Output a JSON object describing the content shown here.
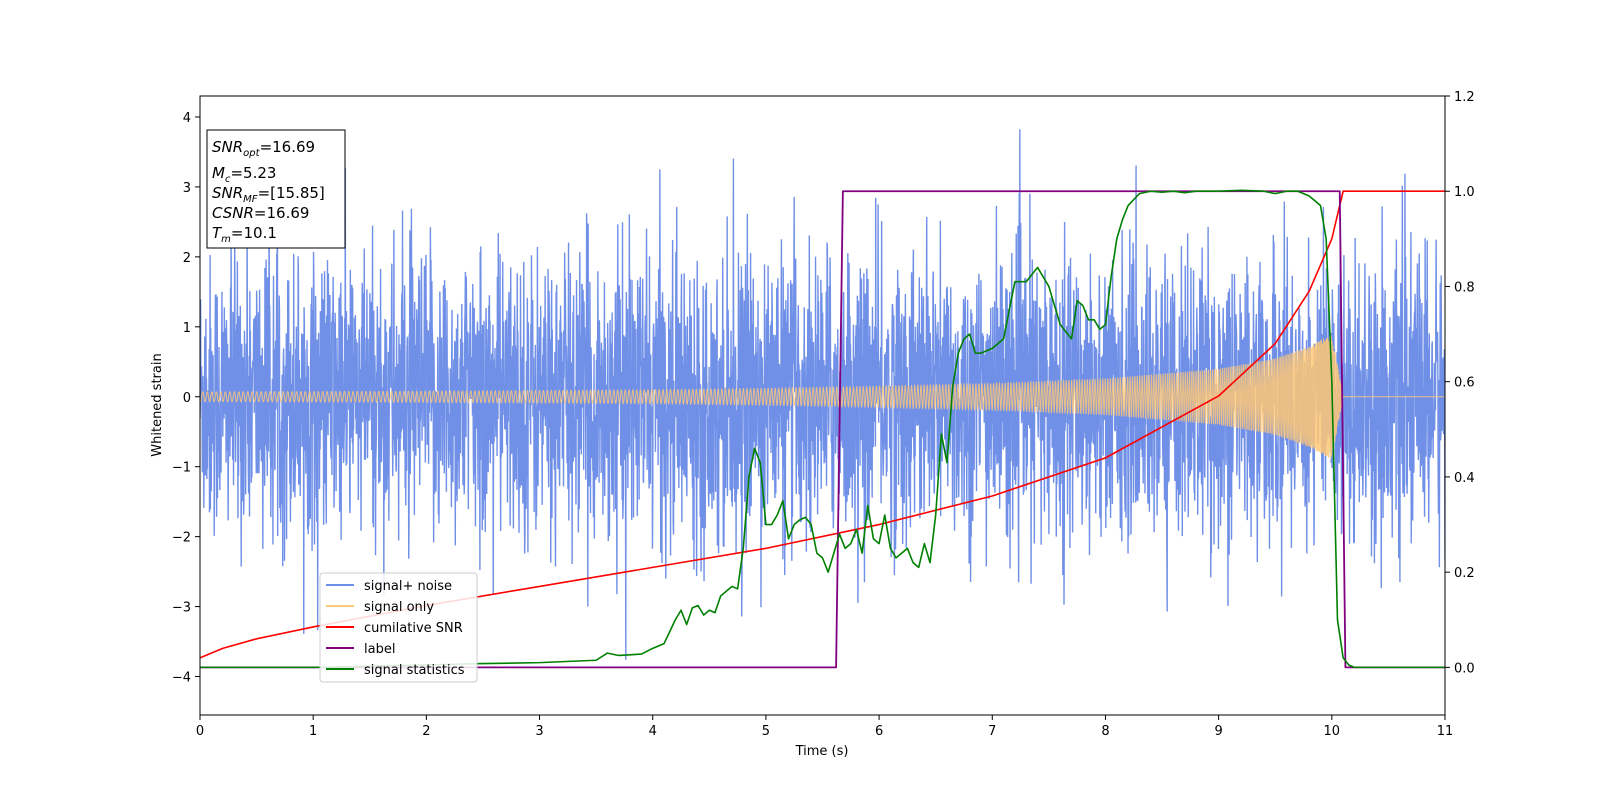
{
  "chart_data": {
    "type": "line",
    "title": "",
    "xlabel": "Time (s)",
    "ylabel": "Whitened strain",
    "y2label": "",
    "xlim": [
      0,
      11
    ],
    "ylim": [
      -4.55,
      4.3
    ],
    "y2lim": [
      -0.1,
      1.2
    ],
    "xticks": [
      "0",
      "1",
      "2",
      "3",
      "4",
      "5",
      "6",
      "7",
      "8",
      "9",
      "10",
      "11"
    ],
    "yticks": [
      "−4",
      "−3",
      "−2",
      "−1",
      "0",
      "1",
      "2",
      "3",
      "4"
    ],
    "y2ticks": [
      "0.0",
      "0.2",
      "0.4",
      "0.6",
      "0.8",
      "1.0",
      "1.2"
    ],
    "grid": false,
    "legend_position": "lower-left",
    "info_box": {
      "snr_opt": {
        "sym": "SNR",
        "sub": "opt",
        "val": "=16.69"
      },
      "mc": {
        "sym": "M",
        "sub": "c",
        "val": "=5.23"
      },
      "snr_mf": {
        "sym": "SNR",
        "sub": "MF",
        "val": "=[15.85]"
      },
      "csnr": {
        "sym": "CSNR",
        "sub": "",
        "val": "=16.69"
      },
      "tm": {
        "sym": "T",
        "sub": "m",
        "val": "=10.1"
      }
    },
    "series": [
      {
        "name": "signal+ noise",
        "color": "#7090e8",
        "axis": "left",
        "description": "noise band approx ±2.6 with spikes up to 3.9",
        "noise_rms": 1.0
      },
      {
        "name": "signal only",
        "color": "#ffc875",
        "axis": "left",
        "envelope": {
          "x": [
            0,
            2,
            4,
            5,
            6,
            7,
            8,
            9,
            9.5,
            9.8,
            10.0,
            10.1,
            11
          ],
          "amp": [
            0.07,
            0.08,
            0.1,
            0.12,
            0.15,
            0.19,
            0.26,
            0.4,
            0.55,
            0.72,
            0.9,
            0.0,
            0.0
          ]
        }
      },
      {
        "name": "cumilative SNR",
        "color": "#ff0000",
        "axis": "right",
        "x": [
          0,
          0.2,
          0.5,
          1,
          2,
          3,
          4,
          5,
          6,
          7,
          8,
          9,
          9.5,
          9.8,
          10.0,
          10.1,
          11
        ],
        "y": [
          0.02,
          0.04,
          0.06,
          0.085,
          0.13,
          0.17,
          0.21,
          0.25,
          0.3,
          0.36,
          0.44,
          0.57,
          0.68,
          0.79,
          0.9,
          1.0,
          1.0
        ]
      },
      {
        "name": "label",
        "color": "#800080",
        "axis": "right",
        "x": [
          0,
          5.62,
          5.68,
          10.07,
          10.12,
          11
        ],
        "y": [
          0,
          0,
          1,
          1,
          0,
          0
        ]
      },
      {
        "name": "signal statistics",
        "color": "#008000",
        "axis": "right",
        "x": [
          0,
          1,
          2,
          2.5,
          3,
          3.5,
          3.6,
          3.7,
          3.9,
          4.0,
          4.1,
          4.2,
          4.25,
          4.3,
          4.35,
          4.4,
          4.45,
          4.5,
          4.55,
          4.6,
          4.7,
          4.75,
          4.8,
          4.85,
          4.9,
          4.95,
          5.0,
          5.05,
          5.1,
          5.15,
          5.2,
          5.25,
          5.3,
          5.35,
          5.4,
          5.45,
          5.5,
          5.55,
          5.6,
          5.65,
          5.7,
          5.75,
          5.8,
          5.85,
          5.9,
          5.95,
          6.0,
          6.05,
          6.1,
          6.15,
          6.2,
          6.25,
          6.3,
          6.35,
          6.4,
          6.45,
          6.5,
          6.55,
          6.6,
          6.65,
          6.7,
          6.75,
          6.8,
          6.85,
          6.9,
          7.0,
          7.1,
          7.2,
          7.3,
          7.4,
          7.5,
          7.6,
          7.7,
          7.75,
          7.8,
          7.85,
          7.9,
          7.95,
          8.0,
          8.05,
          8.1,
          8.15,
          8.2,
          8.3,
          8.4,
          8.5,
          8.6,
          8.7,
          8.8,
          9.0,
          9.2,
          9.4,
          9.5,
          9.6,
          9.7,
          9.8,
          9.9,
          9.95,
          10.0,
          10.05,
          10.1,
          10.15,
          10.2,
          10.3,
          10.5,
          11
        ],
        "y": [
          0.0,
          0.0,
          0.005,
          0.008,
          0.01,
          0.015,
          0.03,
          0.025,
          0.028,
          0.04,
          0.05,
          0.1,
          0.12,
          0.09,
          0.125,
          0.13,
          0.11,
          0.12,
          0.115,
          0.15,
          0.17,
          0.165,
          0.25,
          0.4,
          0.46,
          0.43,
          0.3,
          0.3,
          0.32,
          0.35,
          0.27,
          0.3,
          0.31,
          0.315,
          0.3,
          0.24,
          0.23,
          0.2,
          0.24,
          0.28,
          0.25,
          0.26,
          0.29,
          0.24,
          0.34,
          0.27,
          0.26,
          0.32,
          0.25,
          0.23,
          0.24,
          0.25,
          0.22,
          0.21,
          0.26,
          0.22,
          0.32,
          0.49,
          0.43,
          0.59,
          0.66,
          0.69,
          0.7,
          0.66,
          0.66,
          0.67,
          0.69,
          0.81,
          0.81,
          0.84,
          0.8,
          0.72,
          0.69,
          0.77,
          0.76,
          0.73,
          0.73,
          0.71,
          0.72,
          0.82,
          0.9,
          0.94,
          0.97,
          0.995,
          1.0,
          0.998,
          1.0,
          0.997,
          1.0,
          1.0,
          1.002,
          1.0,
          0.995,
          1.0,
          1.0,
          0.99,
          0.97,
          0.9,
          0.6,
          0.1,
          0.02,
          0.005,
          0.0,
          0.0,
          0.0,
          0.0
        ]
      }
    ]
  }
}
